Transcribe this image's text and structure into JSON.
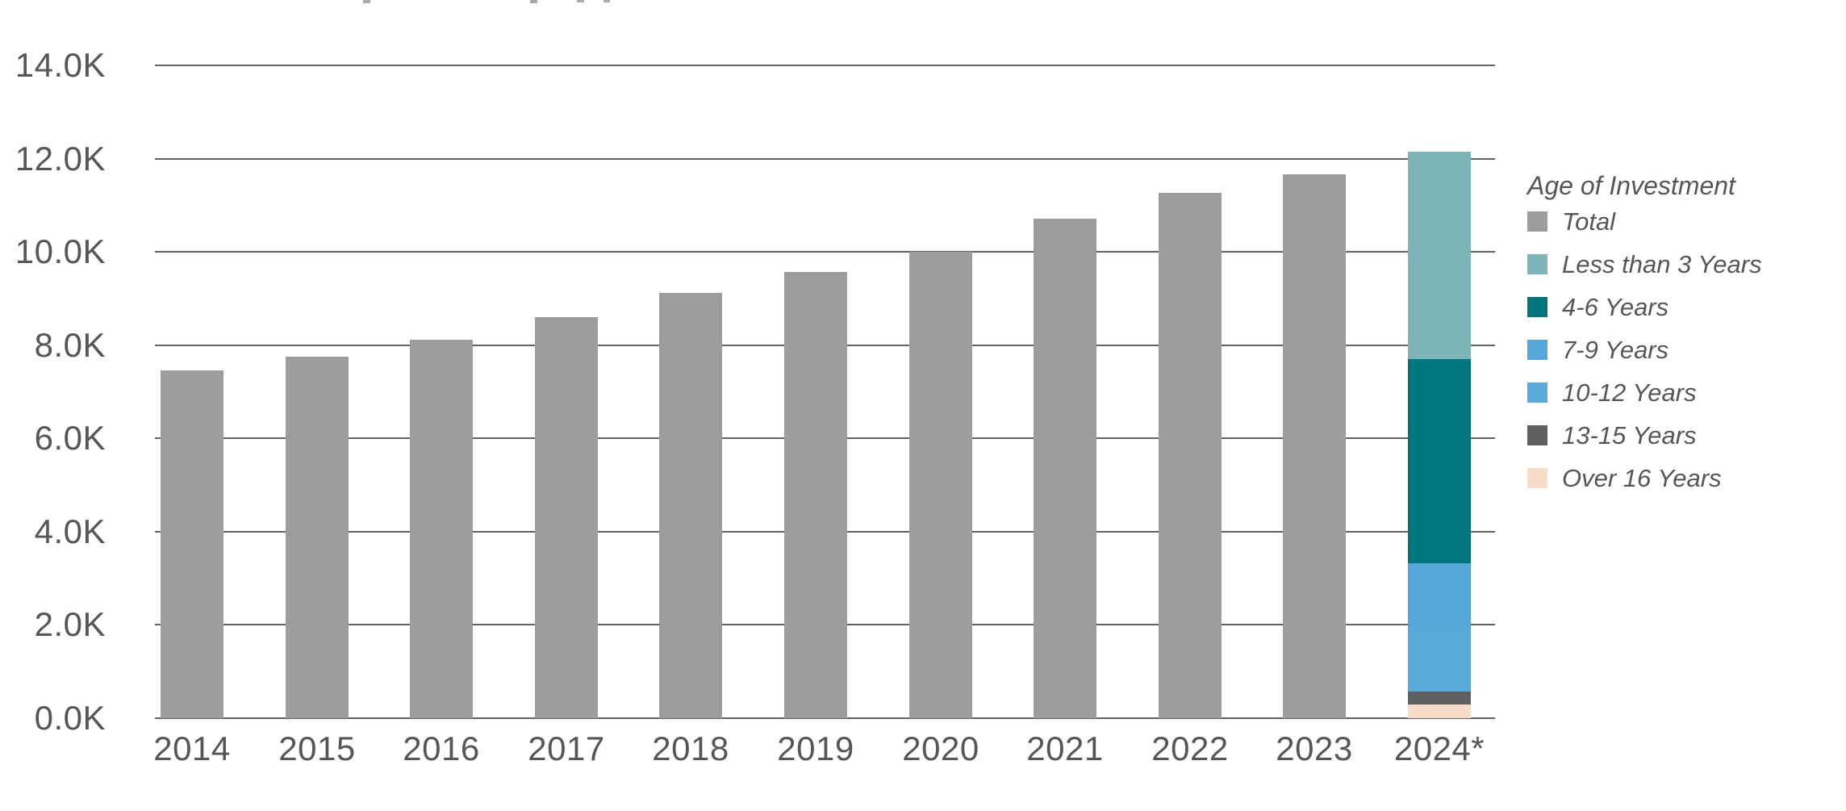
{
  "chart_data": {
    "type": "bar",
    "title": "",
    "xlabel": "",
    "ylabel": "",
    "categories": [
      "2014",
      "2015",
      "2016",
      "2017",
      "2018",
      "2019",
      "2020",
      "2021",
      "2022",
      "2023",
      "2024*"
    ],
    "series": [
      {
        "name": "Total",
        "color": "#9c9d9d",
        "values": [
          7.45,
          7.75,
          8.12,
          8.6,
          9.12,
          9.57,
          10.0,
          10.71,
          11.26,
          11.67,
          null
        ]
      },
      {
        "name": "Over 16 Years",
        "color": "#f8dcc7",
        "values": [
          null,
          null,
          null,
          null,
          null,
          null,
          null,
          null,
          null,
          null,
          0.3
        ]
      },
      {
        "name": "13-15 Years",
        "color": "#5f6062",
        "values": [
          null,
          null,
          null,
          null,
          null,
          null,
          null,
          null,
          null,
          null,
          0.27
        ]
      },
      {
        "name": "10-12 Years",
        "color": "#5aaad9",
        "values": [
          null,
          null,
          null,
          null,
          null,
          null,
          null,
          null,
          null,
          null,
          1.36
        ]
      },
      {
        "name": "7-9 Years",
        "color": "#57a7db",
        "values": [
          null,
          null,
          null,
          null,
          null,
          null,
          null,
          null,
          null,
          null,
          1.4
        ]
      },
      {
        "name": "4-6 Years",
        "color": "#00767d",
        "values": [
          null,
          null,
          null,
          null,
          null,
          null,
          null,
          null,
          null,
          null,
          4.37
        ]
      },
      {
        "name": "Less than 3 Years",
        "color": "#7cb4b8",
        "values": [
          null,
          null,
          null,
          null,
          null,
          null,
          null,
          null,
          null,
          null,
          4.45
        ]
      }
    ],
    "y_ticks": [
      "0.0K",
      "2.0K",
      "4.0K",
      "6.0K",
      "8.0K",
      "10.0K",
      "12.0K",
      "14.0K"
    ],
    "ylim": [
      0,
      14000
    ],
    "grid": "horizontal",
    "legend_position": "right"
  },
  "legend": {
    "title": "Age of Investment",
    "items": [
      {
        "label": "Total",
        "color": "#9c9d9d"
      },
      {
        "label": "Less than 3 Years",
        "color": "#7cb4b8"
      },
      {
        "label": "4-6 Years",
        "color": "#00767d"
      },
      {
        "label": "7-9 Years",
        "color": "#57a7db"
      },
      {
        "label": "10-12 Years",
        "color": "#5aaad9"
      },
      {
        "label": "13-15 Years",
        "color": "#5f6062"
      },
      {
        "label": "Over 16 Years",
        "color": "#f8dcc7"
      }
    ]
  },
  "colors": {
    "axis_text": "#54565a",
    "gridline": "#606267",
    "background": "#ffffff"
  }
}
